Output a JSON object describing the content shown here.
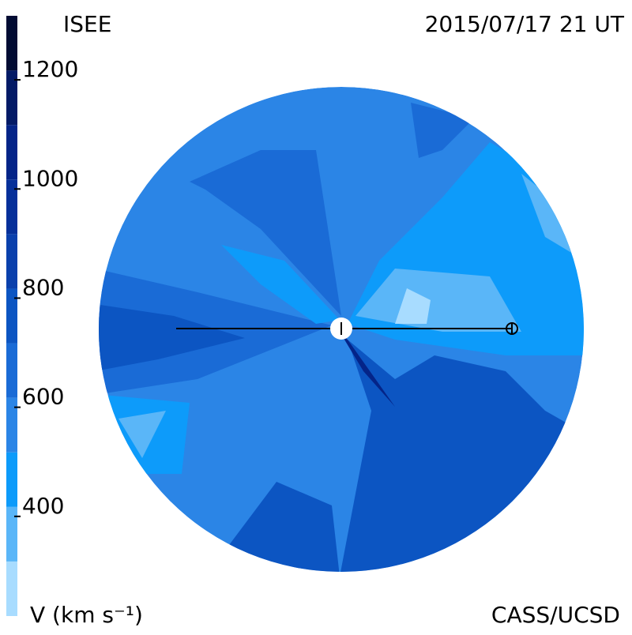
{
  "chart_data": {
    "type": "contour-map",
    "title": "ISEE",
    "subtitle": "2015/07/17 21 UT",
    "credit": "CASS/UCSD",
    "colorbar": {
      "label": "V (km s⁻¹)",
      "bounds": [
        200,
        300,
        400,
        500,
        600,
        700,
        800,
        900,
        1000,
        1100,
        1200,
        1300
      ],
      "colors": [
        "#a8dcff",
        "#5ab6f8",
        "#0d9bfa",
        "#2b85e6",
        "#1a6bd6",
        "#0c55c2",
        "#0a40ac",
        "#06309a",
        "#042488",
        "#031a66",
        "#020c33"
      ],
      "ylim": [
        200,
        1300
      ],
      "yticks": [
        400,
        600,
        800,
        1000,
        1200
      ]
    }
  }
}
